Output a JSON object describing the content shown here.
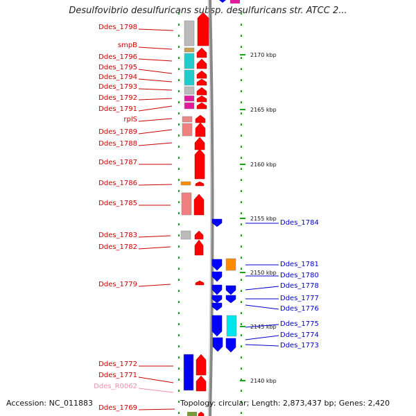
{
  "title": "Desulfovibrio desulfuricans subsp. desulfuricans str. ATCC 2...",
  "footer": {
    "accession": "Accession: NC_011883",
    "topology": "Topology: circular; Length: 2,873,437 bp; Genes: 2,420"
  },
  "colors": {
    "forward_label": "#cc0000",
    "reverse_label": "#0000cc",
    "rna_label": "#f08fb0",
    "cds_red": "#ff0000",
    "cds_blue": "#0000ff",
    "tick_green": "#11aa11",
    "backbone": "#888888"
  },
  "scale_marks": [
    {
      "label": "2170 kbp",
      "kbp": 2170
    },
    {
      "label": "2165 kbp",
      "kbp": 2165
    },
    {
      "label": "2160 kbp",
      "kbp": 2160
    },
    {
      "label": "2155 kbp",
      "kbp": 2155
    },
    {
      "label": "2150 kbp",
      "kbp": 2150
    },
    {
      "label": "2145 kbp",
      "kbp": 2145
    },
    {
      "label": "2140 kbp",
      "kbp": 2140
    }
  ],
  "forward_labels": [
    {
      "text": "Ddes_1798",
      "kind": "cds"
    },
    {
      "text": "smpB",
      "kind": "cds"
    },
    {
      "text": "Ddes_1796",
      "kind": "cds"
    },
    {
      "text": "Ddes_1795",
      "kind": "cds"
    },
    {
      "text": "Ddes_1794",
      "kind": "cds"
    },
    {
      "text": "Ddes_1793",
      "kind": "cds"
    },
    {
      "text": "Ddes_1792",
      "kind": "cds"
    },
    {
      "text": "Ddes_1791",
      "kind": "cds"
    },
    {
      "text": "rplS",
      "kind": "cds"
    },
    {
      "text": "Ddes_1789",
      "kind": "cds"
    },
    {
      "text": "Ddes_1788",
      "kind": "cds"
    },
    {
      "text": "Ddes_1787",
      "kind": "cds"
    },
    {
      "text": "Ddes_1786",
      "kind": "cds"
    },
    {
      "text": "Ddes_1785",
      "kind": "cds"
    },
    {
      "text": "Ddes_1783",
      "kind": "cds"
    },
    {
      "text": "Ddes_1782",
      "kind": "cds"
    },
    {
      "text": "Ddes_1779",
      "kind": "cds"
    },
    {
      "text": "Ddes_1772",
      "kind": "cds"
    },
    {
      "text": "Ddes_1771",
      "kind": "cds"
    },
    {
      "text": "Ddes_R0062",
      "kind": "rna"
    },
    {
      "text": "Ddes_1769",
      "kind": "cds"
    }
  ],
  "reverse_labels": [
    {
      "text": "Ddes_1784"
    },
    {
      "text": "Ddes_1781"
    },
    {
      "text": "Ddes_1780"
    },
    {
      "text": "Ddes_1778"
    },
    {
      "text": "Ddes_1777"
    },
    {
      "text": "Ddes_1776"
    },
    {
      "text": "Ddes_1775"
    },
    {
      "text": "Ddes_1774"
    },
    {
      "text": "Ddes_1773"
    }
  ]
}
